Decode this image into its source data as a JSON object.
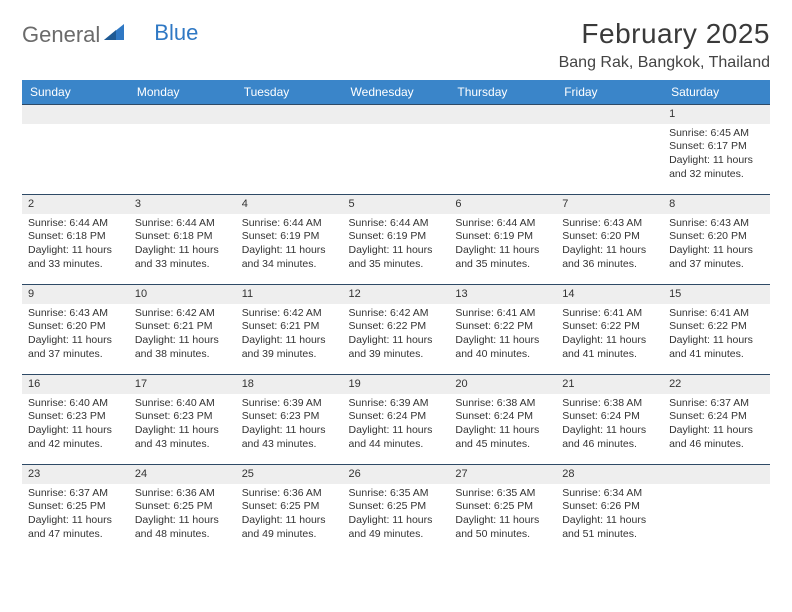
{
  "logo": {
    "part1": "General",
    "part2": "Blue"
  },
  "title": "February 2025",
  "location": "Bang Rak, Bangkok, Thailand",
  "colors": {
    "header_bg": "#3a85c9",
    "header_text": "#ffffff",
    "row_divider": "#2e4a66",
    "daynum_bg": "#eeeeee",
    "logo_blue": "#2f78c4",
    "logo_grey": "#6b6b6b"
  },
  "fonts": {
    "title_size_pt": 21,
    "location_size_pt": 12,
    "dayheader_size_pt": 9,
    "cell_size_pt": 8
  },
  "day_headers": [
    "Sunday",
    "Monday",
    "Tuesday",
    "Wednesday",
    "Thursday",
    "Friday",
    "Saturday"
  ],
  "weeks": [
    [
      {
        "n": "",
        "sr": "",
        "ss": "",
        "dl": ""
      },
      {
        "n": "",
        "sr": "",
        "ss": "",
        "dl": ""
      },
      {
        "n": "",
        "sr": "",
        "ss": "",
        "dl": ""
      },
      {
        "n": "",
        "sr": "",
        "ss": "",
        "dl": ""
      },
      {
        "n": "",
        "sr": "",
        "ss": "",
        "dl": ""
      },
      {
        "n": "",
        "sr": "",
        "ss": "",
        "dl": ""
      },
      {
        "n": "1",
        "sr": "Sunrise: 6:45 AM",
        "ss": "Sunset: 6:17 PM",
        "dl": "Daylight: 11 hours and 32 minutes."
      }
    ],
    [
      {
        "n": "2",
        "sr": "Sunrise: 6:44 AM",
        "ss": "Sunset: 6:18 PM",
        "dl": "Daylight: 11 hours and 33 minutes."
      },
      {
        "n": "3",
        "sr": "Sunrise: 6:44 AM",
        "ss": "Sunset: 6:18 PM",
        "dl": "Daylight: 11 hours and 33 minutes."
      },
      {
        "n": "4",
        "sr": "Sunrise: 6:44 AM",
        "ss": "Sunset: 6:19 PM",
        "dl": "Daylight: 11 hours and 34 minutes."
      },
      {
        "n": "5",
        "sr": "Sunrise: 6:44 AM",
        "ss": "Sunset: 6:19 PM",
        "dl": "Daylight: 11 hours and 35 minutes."
      },
      {
        "n": "6",
        "sr": "Sunrise: 6:44 AM",
        "ss": "Sunset: 6:19 PM",
        "dl": "Daylight: 11 hours and 35 minutes."
      },
      {
        "n": "7",
        "sr": "Sunrise: 6:43 AM",
        "ss": "Sunset: 6:20 PM",
        "dl": "Daylight: 11 hours and 36 minutes."
      },
      {
        "n": "8",
        "sr": "Sunrise: 6:43 AM",
        "ss": "Sunset: 6:20 PM",
        "dl": "Daylight: 11 hours and 37 minutes."
      }
    ],
    [
      {
        "n": "9",
        "sr": "Sunrise: 6:43 AM",
        "ss": "Sunset: 6:20 PM",
        "dl": "Daylight: 11 hours and 37 minutes."
      },
      {
        "n": "10",
        "sr": "Sunrise: 6:42 AM",
        "ss": "Sunset: 6:21 PM",
        "dl": "Daylight: 11 hours and 38 minutes."
      },
      {
        "n": "11",
        "sr": "Sunrise: 6:42 AM",
        "ss": "Sunset: 6:21 PM",
        "dl": "Daylight: 11 hours and 39 minutes."
      },
      {
        "n": "12",
        "sr": "Sunrise: 6:42 AM",
        "ss": "Sunset: 6:22 PM",
        "dl": "Daylight: 11 hours and 39 minutes."
      },
      {
        "n": "13",
        "sr": "Sunrise: 6:41 AM",
        "ss": "Sunset: 6:22 PM",
        "dl": "Daylight: 11 hours and 40 minutes."
      },
      {
        "n": "14",
        "sr": "Sunrise: 6:41 AM",
        "ss": "Sunset: 6:22 PM",
        "dl": "Daylight: 11 hours and 41 minutes."
      },
      {
        "n": "15",
        "sr": "Sunrise: 6:41 AM",
        "ss": "Sunset: 6:22 PM",
        "dl": "Daylight: 11 hours and 41 minutes."
      }
    ],
    [
      {
        "n": "16",
        "sr": "Sunrise: 6:40 AM",
        "ss": "Sunset: 6:23 PM",
        "dl": "Daylight: 11 hours and 42 minutes."
      },
      {
        "n": "17",
        "sr": "Sunrise: 6:40 AM",
        "ss": "Sunset: 6:23 PM",
        "dl": "Daylight: 11 hours and 43 minutes."
      },
      {
        "n": "18",
        "sr": "Sunrise: 6:39 AM",
        "ss": "Sunset: 6:23 PM",
        "dl": "Daylight: 11 hours and 43 minutes."
      },
      {
        "n": "19",
        "sr": "Sunrise: 6:39 AM",
        "ss": "Sunset: 6:24 PM",
        "dl": "Daylight: 11 hours and 44 minutes."
      },
      {
        "n": "20",
        "sr": "Sunrise: 6:38 AM",
        "ss": "Sunset: 6:24 PM",
        "dl": "Daylight: 11 hours and 45 minutes."
      },
      {
        "n": "21",
        "sr": "Sunrise: 6:38 AM",
        "ss": "Sunset: 6:24 PM",
        "dl": "Daylight: 11 hours and 46 minutes."
      },
      {
        "n": "22",
        "sr": "Sunrise: 6:37 AM",
        "ss": "Sunset: 6:24 PM",
        "dl": "Daylight: 11 hours and 46 minutes."
      }
    ],
    [
      {
        "n": "23",
        "sr": "Sunrise: 6:37 AM",
        "ss": "Sunset: 6:25 PM",
        "dl": "Daylight: 11 hours and 47 minutes."
      },
      {
        "n": "24",
        "sr": "Sunrise: 6:36 AM",
        "ss": "Sunset: 6:25 PM",
        "dl": "Daylight: 11 hours and 48 minutes."
      },
      {
        "n": "25",
        "sr": "Sunrise: 6:36 AM",
        "ss": "Sunset: 6:25 PM",
        "dl": "Daylight: 11 hours and 49 minutes."
      },
      {
        "n": "26",
        "sr": "Sunrise: 6:35 AM",
        "ss": "Sunset: 6:25 PM",
        "dl": "Daylight: 11 hours and 49 minutes."
      },
      {
        "n": "27",
        "sr": "Sunrise: 6:35 AM",
        "ss": "Sunset: 6:25 PM",
        "dl": "Daylight: 11 hours and 50 minutes."
      },
      {
        "n": "28",
        "sr": "Sunrise: 6:34 AM",
        "ss": "Sunset: 6:26 PM",
        "dl": "Daylight: 11 hours and 51 minutes."
      },
      {
        "n": "",
        "sr": "",
        "ss": "",
        "dl": ""
      }
    ]
  ]
}
